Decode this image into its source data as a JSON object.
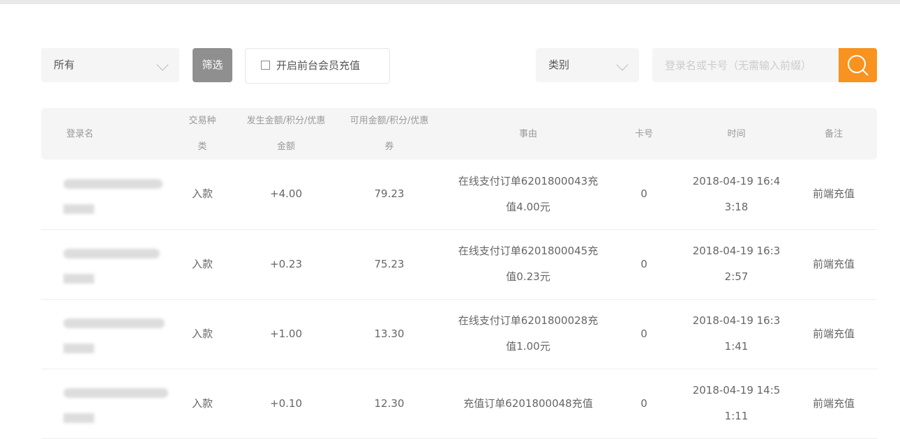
{
  "filters": {
    "type_select": "所有",
    "filter_button": "筛选",
    "member_recharge_checkbox": "开启前台会员充值",
    "category_select": "类别",
    "search_placeholder": "登录名或卡号（无需输入前缀）"
  },
  "colors": {
    "accent": "#f7931e",
    "filter_button": "#8f8f8f"
  },
  "table": {
    "headers": [
      "登录名",
      "交易种类",
      "发生金额/积分/优惠金额",
      "可用金额/积分/优惠券",
      "事由",
      "卡号",
      "时间",
      "备注"
    ],
    "rows": [
      {
        "type": "入款",
        "amount": "+4.00",
        "available": "79.23",
        "reason": "在线支付订单6201800043充值4.00元",
        "card": "0",
        "time": "2018-04-19 16:43:18",
        "note": "前端充值"
      },
      {
        "type": "入款",
        "amount": "+0.23",
        "available": "75.23",
        "reason": "在线支付订单6201800045充值0.23元",
        "card": "0",
        "time": "2018-04-19 16:32:57",
        "note": "前端充值"
      },
      {
        "type": "入款",
        "amount": "+1.00",
        "available": "13.30",
        "reason": "在线支付订单6201800028充值1.00元",
        "card": "0",
        "time": "2018-04-19 16:31:41",
        "note": "前端充值"
      },
      {
        "type": "入款",
        "amount": "+0.10",
        "available": "12.30",
        "reason": "充值订单6201800048充值",
        "card": "0",
        "time": "2018-04-19 14:51:11",
        "note": "前端充值"
      }
    ]
  }
}
